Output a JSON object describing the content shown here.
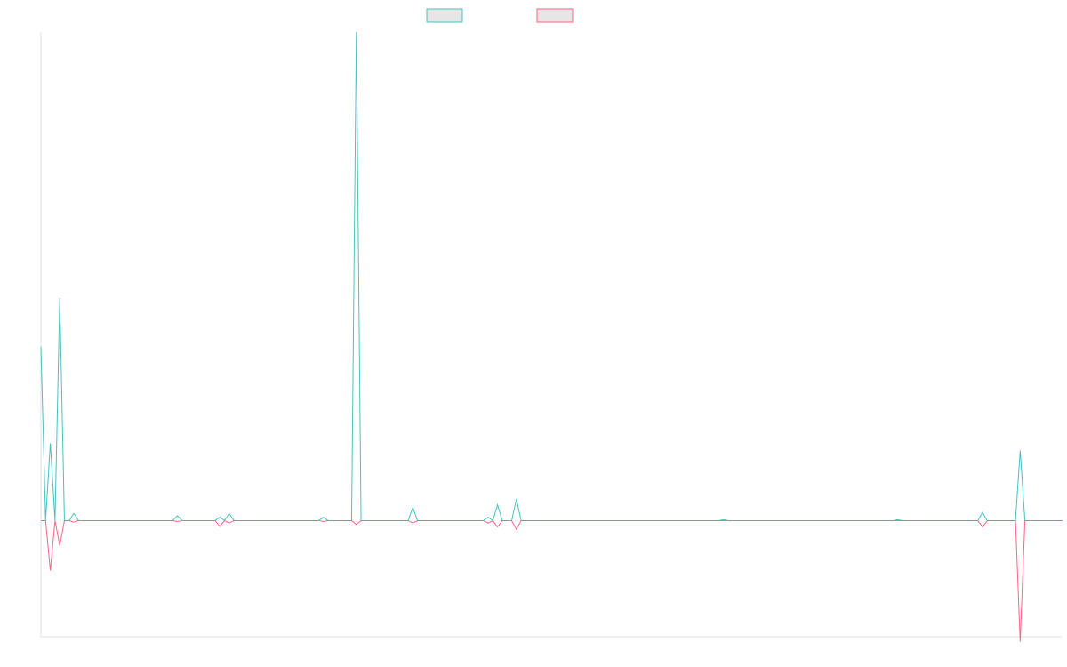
{
  "colors": {
    "series1": "#4bc0c0",
    "series2": "#ff6384",
    "legendFill": "#e6e6e6",
    "axis": "#e0e0e0"
  },
  "chart_data": {
    "type": "line",
    "title": "",
    "xlabel": "",
    "ylabel": "",
    "legend_position": "top",
    "grid": false,
    "ylim": [
      -2.4,
      10.1
    ],
    "x_count": 218,
    "series": [
      {
        "color": "#4bc0c0",
        "points": [
          [
            0,
            3.6
          ],
          [
            1,
            0
          ],
          [
            2,
            1.6
          ],
          [
            3,
            0
          ],
          [
            4,
            4.6
          ],
          [
            5,
            0
          ],
          [
            6,
            0
          ],
          [
            7,
            0.15
          ],
          [
            28,
            0
          ],
          [
            29,
            0.1
          ],
          [
            30,
            0
          ],
          [
            37,
            0
          ],
          [
            38,
            0.07
          ],
          [
            39,
            0
          ],
          [
            40,
            0.15
          ],
          [
            41,
            0
          ],
          [
            59,
            0
          ],
          [
            60,
            0.07
          ],
          [
            61,
            0
          ],
          [
            66,
            0
          ],
          [
            67,
            10.1
          ],
          [
            68,
            0
          ],
          [
            78,
            0
          ],
          [
            79,
            0.27
          ],
          [
            80,
            0
          ],
          [
            94,
            0
          ],
          [
            95,
            0.07
          ],
          [
            96,
            0
          ],
          [
            97,
            0.33
          ],
          [
            98,
            0
          ],
          [
            100,
            0
          ],
          [
            101,
            0.45
          ],
          [
            102,
            0
          ],
          [
            144,
            0
          ],
          [
            145,
            0.02
          ],
          [
            146,
            0
          ],
          [
            181,
            0
          ],
          [
            182,
            0.02
          ],
          [
            183,
            0
          ],
          [
            199,
            0
          ],
          [
            200,
            0.17
          ],
          [
            201,
            0
          ],
          [
            207,
            0
          ],
          [
            208,
            1.45
          ],
          [
            209,
            0
          ],
          [
            217,
            0
          ]
        ]
      },
      {
        "color": "#ff6384",
        "points": [
          [
            0,
            0
          ],
          [
            1,
            0
          ],
          [
            2,
            -1.03
          ],
          [
            3,
            0
          ],
          [
            4,
            -0.52
          ],
          [
            5,
            0
          ],
          [
            6,
            0
          ],
          [
            7,
            -0.03
          ],
          [
            28,
            0
          ],
          [
            29,
            -0.02
          ],
          [
            30,
            0
          ],
          [
            37,
            0
          ],
          [
            38,
            -0.12
          ],
          [
            39,
            0
          ],
          [
            40,
            -0.05
          ],
          [
            41,
            0
          ],
          [
            59,
            0
          ],
          [
            60,
            -0.02
          ],
          [
            61,
            0
          ],
          [
            66,
            0
          ],
          [
            67,
            -0.08
          ],
          [
            68,
            0
          ],
          [
            78,
            0
          ],
          [
            79,
            -0.05
          ],
          [
            80,
            0
          ],
          [
            94,
            0
          ],
          [
            95,
            -0.05
          ],
          [
            96,
            0
          ],
          [
            97,
            -0.13
          ],
          [
            98,
            0
          ],
          [
            100,
            0
          ],
          [
            101,
            -0.18
          ],
          [
            102,
            0
          ],
          [
            199,
            0
          ],
          [
            200,
            -0.13
          ],
          [
            201,
            0
          ],
          [
            207,
            0
          ],
          [
            208,
            -2.5
          ],
          [
            209,
            0
          ],
          [
            217,
            0
          ]
        ]
      }
    ]
  }
}
